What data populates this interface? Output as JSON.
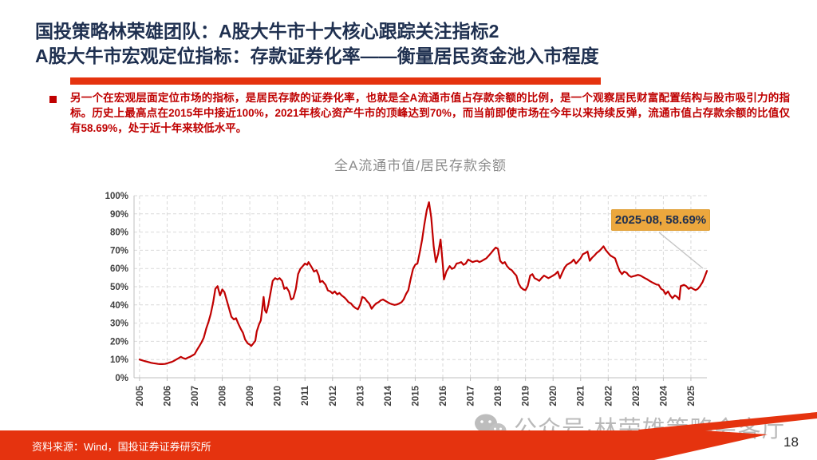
{
  "slide": {
    "title_line1": "国投策略林荣雄团队：A股大牛市十大核心跟踪关注指标2",
    "title_line2": "A股大牛市宏观定位指标：存款证券化率——衡量居民资金池入市程度",
    "bullet_text": "另一个在宏观层面定位市场的指标，是居民存款的证券化率，也就是全A流通市值占存款余额的比例，是一个观察居民财富配置结构与股市吸引力的指标。历史上最高点在2015年中接近100%，2021年核心资产牛市的顶峰达到70%，而当前即使市场在今年以来持续反弹，流通市值占存款余额的比值仅有58.69%，处于近十年来较低水平。",
    "source_note": "资料来源：Wind，国投证券证券研究所",
    "watermark_text": "公众号·林荣雄策略会客厅",
    "page_number": "18"
  },
  "colors": {
    "title_navy": "#1F3050",
    "accent_red": "#E5330F",
    "body_red": "#BF0000",
    "line_red": "#C00000",
    "annotation_bg": "#ECA73D",
    "annotation_text": "#1F3050",
    "grid_gray": "#D9D9D9",
    "axis_gray": "#BFBFBF",
    "axis_text": "#3F3F3F",
    "chart_title_gray": "#8C8C8C",
    "watermark_gray": "#A8A8A8"
  },
  "chart_data": {
    "type": "line",
    "title": "全A流通市值/居民存款余额",
    "series_name": "全A流通市值/居民存款余额",
    "ylabel": "",
    "xlabel": "",
    "ylim": [
      0,
      100
    ],
    "xlim": [
      2004.8,
      2025.58
    ],
    "grid": "dashed",
    "legend": "none",
    "y_ticks": [
      "0%",
      "10%",
      "20%",
      "30%",
      "40%",
      "50%",
      "60%",
      "70%",
      "80%",
      "90%",
      "100%"
    ],
    "x_ticks": [
      "2005",
      "2006",
      "2007",
      "2008",
      "2009",
      "2010",
      "2011",
      "2012",
      "2013",
      "2014",
      "2015",
      "2016",
      "2017",
      "2018",
      "2019",
      "2020",
      "2021",
      "2022",
      "2023",
      "2024",
      "2025"
    ],
    "annotation": {
      "label": "2025-08, 58.69%",
      "x": "2025-08",
      "y": 58.69
    },
    "points": [
      [
        2005.0,
        10.0
      ],
      [
        2005.08,
        9.6
      ],
      [
        2005.17,
        9.2
      ],
      [
        2005.25,
        8.9
      ],
      [
        2005.33,
        8.6
      ],
      [
        2005.42,
        8.2
      ],
      [
        2005.5,
        8.0
      ],
      [
        2005.58,
        7.8
      ],
      [
        2005.67,
        7.6
      ],
      [
        2005.75,
        7.5
      ],
      [
        2005.83,
        7.5
      ],
      [
        2005.92,
        7.6
      ],
      [
        2006.0,
        7.9
      ],
      [
        2006.08,
        8.3
      ],
      [
        2006.17,
        8.7
      ],
      [
        2006.25,
        9.3
      ],
      [
        2006.33,
        10.0
      ],
      [
        2006.42,
        10.8
      ],
      [
        2006.5,
        11.5
      ],
      [
        2006.58,
        10.8
      ],
      [
        2006.67,
        10.4
      ],
      [
        2006.75,
        11.0
      ],
      [
        2006.83,
        11.5
      ],
      [
        2006.92,
        12.3
      ],
      [
        2007.0,
        13.0
      ],
      [
        2007.08,
        15.2
      ],
      [
        2007.17,
        17.4
      ],
      [
        2007.25,
        19.5
      ],
      [
        2007.33,
        22.0
      ],
      [
        2007.42,
        27.0
      ],
      [
        2007.5,
        30.6
      ],
      [
        2007.58,
        35.0
      ],
      [
        2007.67,
        41.5
      ],
      [
        2007.75,
        48.8
      ],
      [
        2007.83,
        50.3
      ],
      [
        2007.92,
        45.2
      ],
      [
        2008.0,
        48.5
      ],
      [
        2008.08,
        47.0
      ],
      [
        2008.17,
        42.2
      ],
      [
        2008.25,
        37.9
      ],
      [
        2008.33,
        33.5
      ],
      [
        2008.42,
        32.0
      ],
      [
        2008.5,
        32.7
      ],
      [
        2008.58,
        29.8
      ],
      [
        2008.67,
        26.9
      ],
      [
        2008.75,
        24.7
      ],
      [
        2008.83,
        21.0
      ],
      [
        2008.92,
        18.9
      ],
      [
        2009.0,
        18.2
      ],
      [
        2009.05,
        17.4
      ],
      [
        2009.13,
        18.9
      ],
      [
        2009.2,
        20.3
      ],
      [
        2009.25,
        25.4
      ],
      [
        2009.33,
        29.1
      ],
      [
        2009.4,
        31.5
      ],
      [
        2009.45,
        37.9
      ],
      [
        2009.5,
        44.4
      ],
      [
        2009.55,
        37.1
      ],
      [
        2009.6,
        35.7
      ],
      [
        2009.67,
        40.0
      ],
      [
        2009.75,
        46.5
      ],
      [
        2009.83,
        53.2
      ],
      [
        2009.92,
        54.7
      ],
      [
        2010.0,
        54.0
      ],
      [
        2010.08,
        54.7
      ],
      [
        2010.17,
        53.2
      ],
      [
        2010.25,
        48.8
      ],
      [
        2010.33,
        49.6
      ],
      [
        2010.42,
        47.4
      ],
      [
        2010.5,
        43.0
      ],
      [
        2010.58,
        43.7
      ],
      [
        2010.67,
        48.8
      ],
      [
        2010.75,
        56.9
      ],
      [
        2010.83,
        59.8
      ],
      [
        2010.92,
        61.3
      ],
      [
        2011.0,
        62.7
      ],
      [
        2011.08,
        62.0
      ],
      [
        2011.13,
        63.5
      ],
      [
        2011.25,
        60.5
      ],
      [
        2011.33,
        58.3
      ],
      [
        2011.42,
        59.1
      ],
      [
        2011.5,
        56.1
      ],
      [
        2011.55,
        52.5
      ],
      [
        2011.63,
        53.2
      ],
      [
        2011.75,
        51.0
      ],
      [
        2011.83,
        48.0
      ],
      [
        2011.92,
        47.4
      ],
      [
        2012.0,
        46.3
      ],
      [
        2012.08,
        47.4
      ],
      [
        2012.17,
        45.8
      ],
      [
        2012.25,
        46.6
      ],
      [
        2012.33,
        45.2
      ],
      [
        2012.42,
        44.2
      ],
      [
        2012.5,
        43.0
      ],
      [
        2012.58,
        41.5
      ],
      [
        2012.67,
        40.8
      ],
      [
        2012.75,
        39.3
      ],
      [
        2012.83,
        38.3
      ],
      [
        2012.92,
        37.6
      ],
      [
        2013.0,
        40.0
      ],
      [
        2013.08,
        44.4
      ],
      [
        2013.17,
        43.7
      ],
      [
        2013.25,
        42.0
      ],
      [
        2013.33,
        40.8
      ],
      [
        2013.42,
        37.9
      ],
      [
        2013.5,
        39.5
      ],
      [
        2013.58,
        40.8
      ],
      [
        2013.67,
        41.5
      ],
      [
        2013.75,
        42.5
      ],
      [
        2013.83,
        43.0
      ],
      [
        2013.92,
        42.2
      ],
      [
        2014.0,
        41.5
      ],
      [
        2014.08,
        40.8
      ],
      [
        2014.17,
        40.3
      ],
      [
        2014.25,
        40.0
      ],
      [
        2014.33,
        40.2
      ],
      [
        2014.42,
        40.8
      ],
      [
        2014.5,
        41.5
      ],
      [
        2014.58,
        43.0
      ],
      [
        2014.67,
        46.0
      ],
      [
        2014.75,
        48.1
      ],
      [
        2014.83,
        54.0
      ],
      [
        2014.92,
        59.8
      ],
      [
        2015.0,
        62.0
      ],
      [
        2015.08,
        62.7
      ],
      [
        2015.17,
        69.3
      ],
      [
        2015.25,
        75.9
      ],
      [
        2015.33,
        84.0
      ],
      [
        2015.42,
        92.0
      ],
      [
        2015.5,
        96.4
      ],
      [
        2015.58,
        88.0
      ],
      [
        2015.67,
        72.0
      ],
      [
        2015.75,
        63.5
      ],
      [
        2015.83,
        68.0
      ],
      [
        2015.92,
        75.9
      ],
      [
        2016.0,
        62.0
      ],
      [
        2016.04,
        54.0
      ],
      [
        2016.13,
        58.3
      ],
      [
        2016.25,
        61.3
      ],
      [
        2016.33,
        59.8
      ],
      [
        2016.42,
        60.5
      ],
      [
        2016.5,
        62.7
      ],
      [
        2016.58,
        63.0
      ],
      [
        2016.67,
        63.5
      ],
      [
        2016.75,
        62.0
      ],
      [
        2016.83,
        62.7
      ],
      [
        2016.92,
        64.9
      ],
      [
        2017.0,
        64.2
      ],
      [
        2017.08,
        63.5
      ],
      [
        2017.17,
        64.0
      ],
      [
        2017.25,
        64.2
      ],
      [
        2017.33,
        63.5
      ],
      [
        2017.42,
        64.2
      ],
      [
        2017.5,
        64.9
      ],
      [
        2017.58,
        65.6
      ],
      [
        2017.67,
        67.1
      ],
      [
        2017.75,
        68.5
      ],
      [
        2017.83,
        70.0
      ],
      [
        2017.92,
        71.5
      ],
      [
        2018.0,
        70.8
      ],
      [
        2018.08,
        64.2
      ],
      [
        2018.17,
        62.7
      ],
      [
        2018.25,
        63.5
      ],
      [
        2018.33,
        61.3
      ],
      [
        2018.42,
        59.8
      ],
      [
        2018.5,
        59.1
      ],
      [
        2018.58,
        57.6
      ],
      [
        2018.67,
        56.1
      ],
      [
        2018.75,
        51.8
      ],
      [
        2018.83,
        49.6
      ],
      [
        2018.92,
        48.5
      ],
      [
        2019.0,
        48.1
      ],
      [
        2019.08,
        50.3
      ],
      [
        2019.17,
        56.1
      ],
      [
        2019.25,
        56.9
      ],
      [
        2019.33,
        54.7
      ],
      [
        2019.42,
        54.0
      ],
      [
        2019.5,
        53.2
      ],
      [
        2019.58,
        54.7
      ],
      [
        2019.67,
        56.1
      ],
      [
        2019.75,
        55.4
      ],
      [
        2019.83,
        54.7
      ],
      [
        2019.92,
        55.4
      ],
      [
        2020.0,
        56.1
      ],
      [
        2020.08,
        56.9
      ],
      [
        2020.17,
        58.3
      ],
      [
        2020.25,
        54.7
      ],
      [
        2020.33,
        57.6
      ],
      [
        2020.42,
        60.5
      ],
      [
        2020.5,
        62.0
      ],
      [
        2020.58,
        62.7
      ],
      [
        2020.67,
        63.5
      ],
      [
        2020.75,
        64.9
      ],
      [
        2020.83,
        62.7
      ],
      [
        2020.92,
        64.2
      ],
      [
        2021.0,
        65.6
      ],
      [
        2021.08,
        67.8
      ],
      [
        2021.17,
        68.5
      ],
      [
        2021.25,
        69.3
      ],
      [
        2021.33,
        64.2
      ],
      [
        2021.42,
        66.0
      ],
      [
        2021.5,
        67.1
      ],
      [
        2021.58,
        68.5
      ],
      [
        2021.67,
        69.5
      ],
      [
        2021.75,
        70.8
      ],
      [
        2021.83,
        72.2
      ],
      [
        2021.92,
        70.0
      ],
      [
        2022.0,
        68.5
      ],
      [
        2022.08,
        67.1
      ],
      [
        2022.17,
        66.3
      ],
      [
        2022.25,
        65.6
      ],
      [
        2022.33,
        62.0
      ],
      [
        2022.42,
        58.5
      ],
      [
        2022.5,
        56.9
      ],
      [
        2022.58,
        58.3
      ],
      [
        2022.67,
        57.6
      ],
      [
        2022.75,
        56.1
      ],
      [
        2022.83,
        55.4
      ],
      [
        2022.92,
        55.8
      ],
      [
        2023.0,
        56.1
      ],
      [
        2023.08,
        56.5
      ],
      [
        2023.17,
        56.1
      ],
      [
        2023.25,
        55.4
      ],
      [
        2023.33,
        54.7
      ],
      [
        2023.42,
        54.0
      ],
      [
        2023.5,
        53.2
      ],
      [
        2023.58,
        52.5
      ],
      [
        2023.67,
        51.8
      ],
      [
        2023.75,
        51.2
      ],
      [
        2023.83,
        51.0
      ],
      [
        2023.92,
        48.8
      ],
      [
        2024.0,
        48.1
      ],
      [
        2024.08,
        45.9
      ],
      [
        2024.17,
        47.4
      ],
      [
        2024.25,
        45.2
      ],
      [
        2024.33,
        43.7
      ],
      [
        2024.42,
        45.2
      ],
      [
        2024.5,
        44.4
      ],
      [
        2024.58,
        43.0
      ],
      [
        2024.63,
        50.3
      ],
      [
        2024.75,
        51.0
      ],
      [
        2024.83,
        50.3
      ],
      [
        2024.92,
        48.8
      ],
      [
        2025.0,
        49.6
      ],
      [
        2025.08,
        48.8
      ],
      [
        2025.17,
        48.1
      ],
      [
        2025.25,
        48.8
      ],
      [
        2025.33,
        50.3
      ],
      [
        2025.42,
        52.5
      ],
      [
        2025.5,
        55.4
      ],
      [
        2025.58,
        58.69
      ]
    ]
  }
}
